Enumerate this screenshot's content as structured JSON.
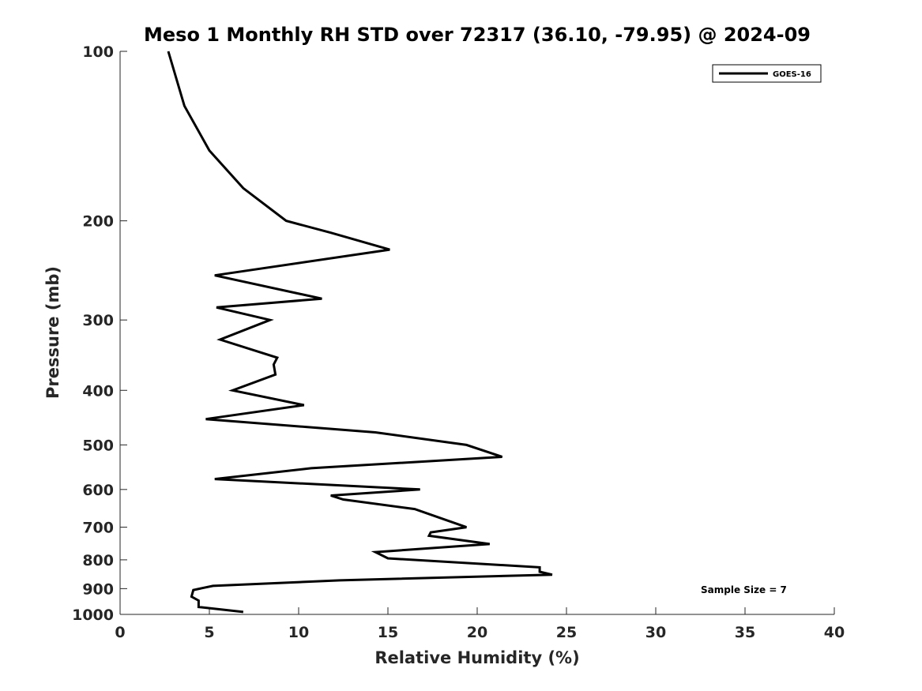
{
  "chart_data": {
    "type": "line",
    "title": "Meso 1 Monthly RH STD over 72317 (36.10, -79.95) @ 2024-09",
    "xlabel": "Relative Humidity (%)",
    "ylabel": "Pressure (mb)",
    "xlim": [
      0,
      40
    ],
    "ylim": [
      100,
      1000
    ],
    "y_scale": "log",
    "y_reversed": true,
    "xticks": [
      0,
      5,
      10,
      15,
      20,
      25,
      30,
      35,
      40
    ],
    "yticks": [
      100,
      200,
      300,
      400,
      500,
      600,
      700,
      800,
      900,
      1000
    ],
    "grid": false,
    "legend": {
      "placement": "top-right",
      "entries": [
        "GOES-16"
      ]
    },
    "annotation": "Sample Size = 7",
    "series": [
      {
        "name": "GOES-16",
        "color": "#000000",
        "points": [
          [
            2.7,
            100
          ],
          [
            3.6,
            125
          ],
          [
            5.0,
            150
          ],
          [
            6.9,
            175
          ],
          [
            9.3,
            200
          ],
          [
            11.8,
            210
          ],
          [
            15.1,
            225
          ],
          [
            5.3,
            250
          ],
          [
            11.3,
            275
          ],
          [
            5.4,
            285
          ],
          [
            8.4,
            300
          ],
          [
            5.6,
            325
          ],
          [
            8.8,
            350
          ],
          [
            8.6,
            360
          ],
          [
            8.7,
            375
          ],
          [
            6.3,
            400
          ],
          [
            10.3,
            425
          ],
          [
            4.8,
            450
          ],
          [
            14.3,
            475
          ],
          [
            19.4,
            500
          ],
          [
            21.4,
            525
          ],
          [
            10.7,
            550
          ],
          [
            5.3,
            575
          ],
          [
            16.8,
            600
          ],
          [
            11.8,
            615
          ],
          [
            12.5,
            625
          ],
          [
            16.5,
            650
          ],
          [
            19.4,
            700
          ],
          [
            17.4,
            715
          ],
          [
            17.3,
            725
          ],
          [
            20.7,
            750
          ],
          [
            14.3,
            775
          ],
          [
            15.0,
            795
          ],
          [
            23.5,
            825
          ],
          [
            23.5,
            840
          ],
          [
            24.2,
            850
          ],
          [
            12.3,
            870
          ],
          [
            5.2,
            890
          ],
          [
            4.1,
            905
          ],
          [
            4.0,
            930
          ],
          [
            4.4,
            945
          ],
          [
            4.4,
            970
          ],
          [
            6.9,
            990
          ]
        ]
      }
    ]
  }
}
